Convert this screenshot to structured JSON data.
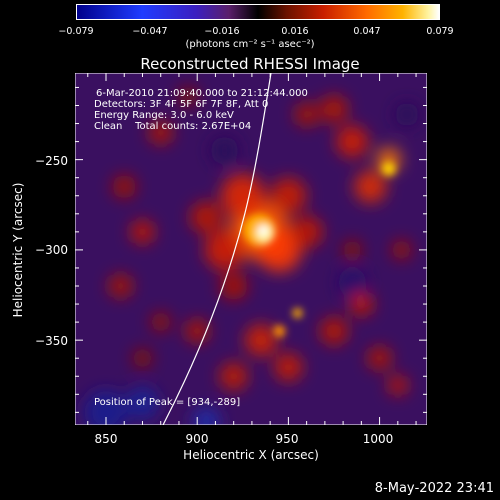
{
  "colorbar": {
    "ticks": [
      "−0.079",
      "−0.047",
      "−0.016",
      "0.016",
      "0.047",
      "0.079"
    ],
    "unit_label": "(photons cm⁻² s⁻¹ asec⁻²)"
  },
  "chart_data": {
    "type": "heatmap",
    "title": "Reconstructed RHESSI Image",
    "xlabel": "Heliocentric X (arcsec)",
    "ylabel": "Heliocentric Y (arcsec)",
    "x_ticks": [
      "850",
      "900",
      "950",
      "1000"
    ],
    "y_ticks": [
      "-250",
      "-300",
      "-350"
    ],
    "y_ticks_display": [
      "−250",
      "−300",
      "−350"
    ],
    "xlim": [
      833,
      1026
    ],
    "ylim": [
      -397,
      -202
    ],
    "color_range": [
      -0.079,
      0.079
    ],
    "peak": [
      934,
      -289
    ],
    "annotations": {
      "time_range": "6‑Mar‑2010 21:09:40.000 to 21:12:44.000",
      "detectors": "Detectors: 3F 4F 5F 6F 7F 8F, Att 0",
      "energy": "Energy Range: 3.0 ‑ 6.0 keV",
      "clean": "Clean    Total counts: 2.67E+04",
      "peak_label": "Position of Peak = [934,‑289]"
    }
  },
  "footer": {
    "date": "8‑May‑2022 23:41"
  }
}
